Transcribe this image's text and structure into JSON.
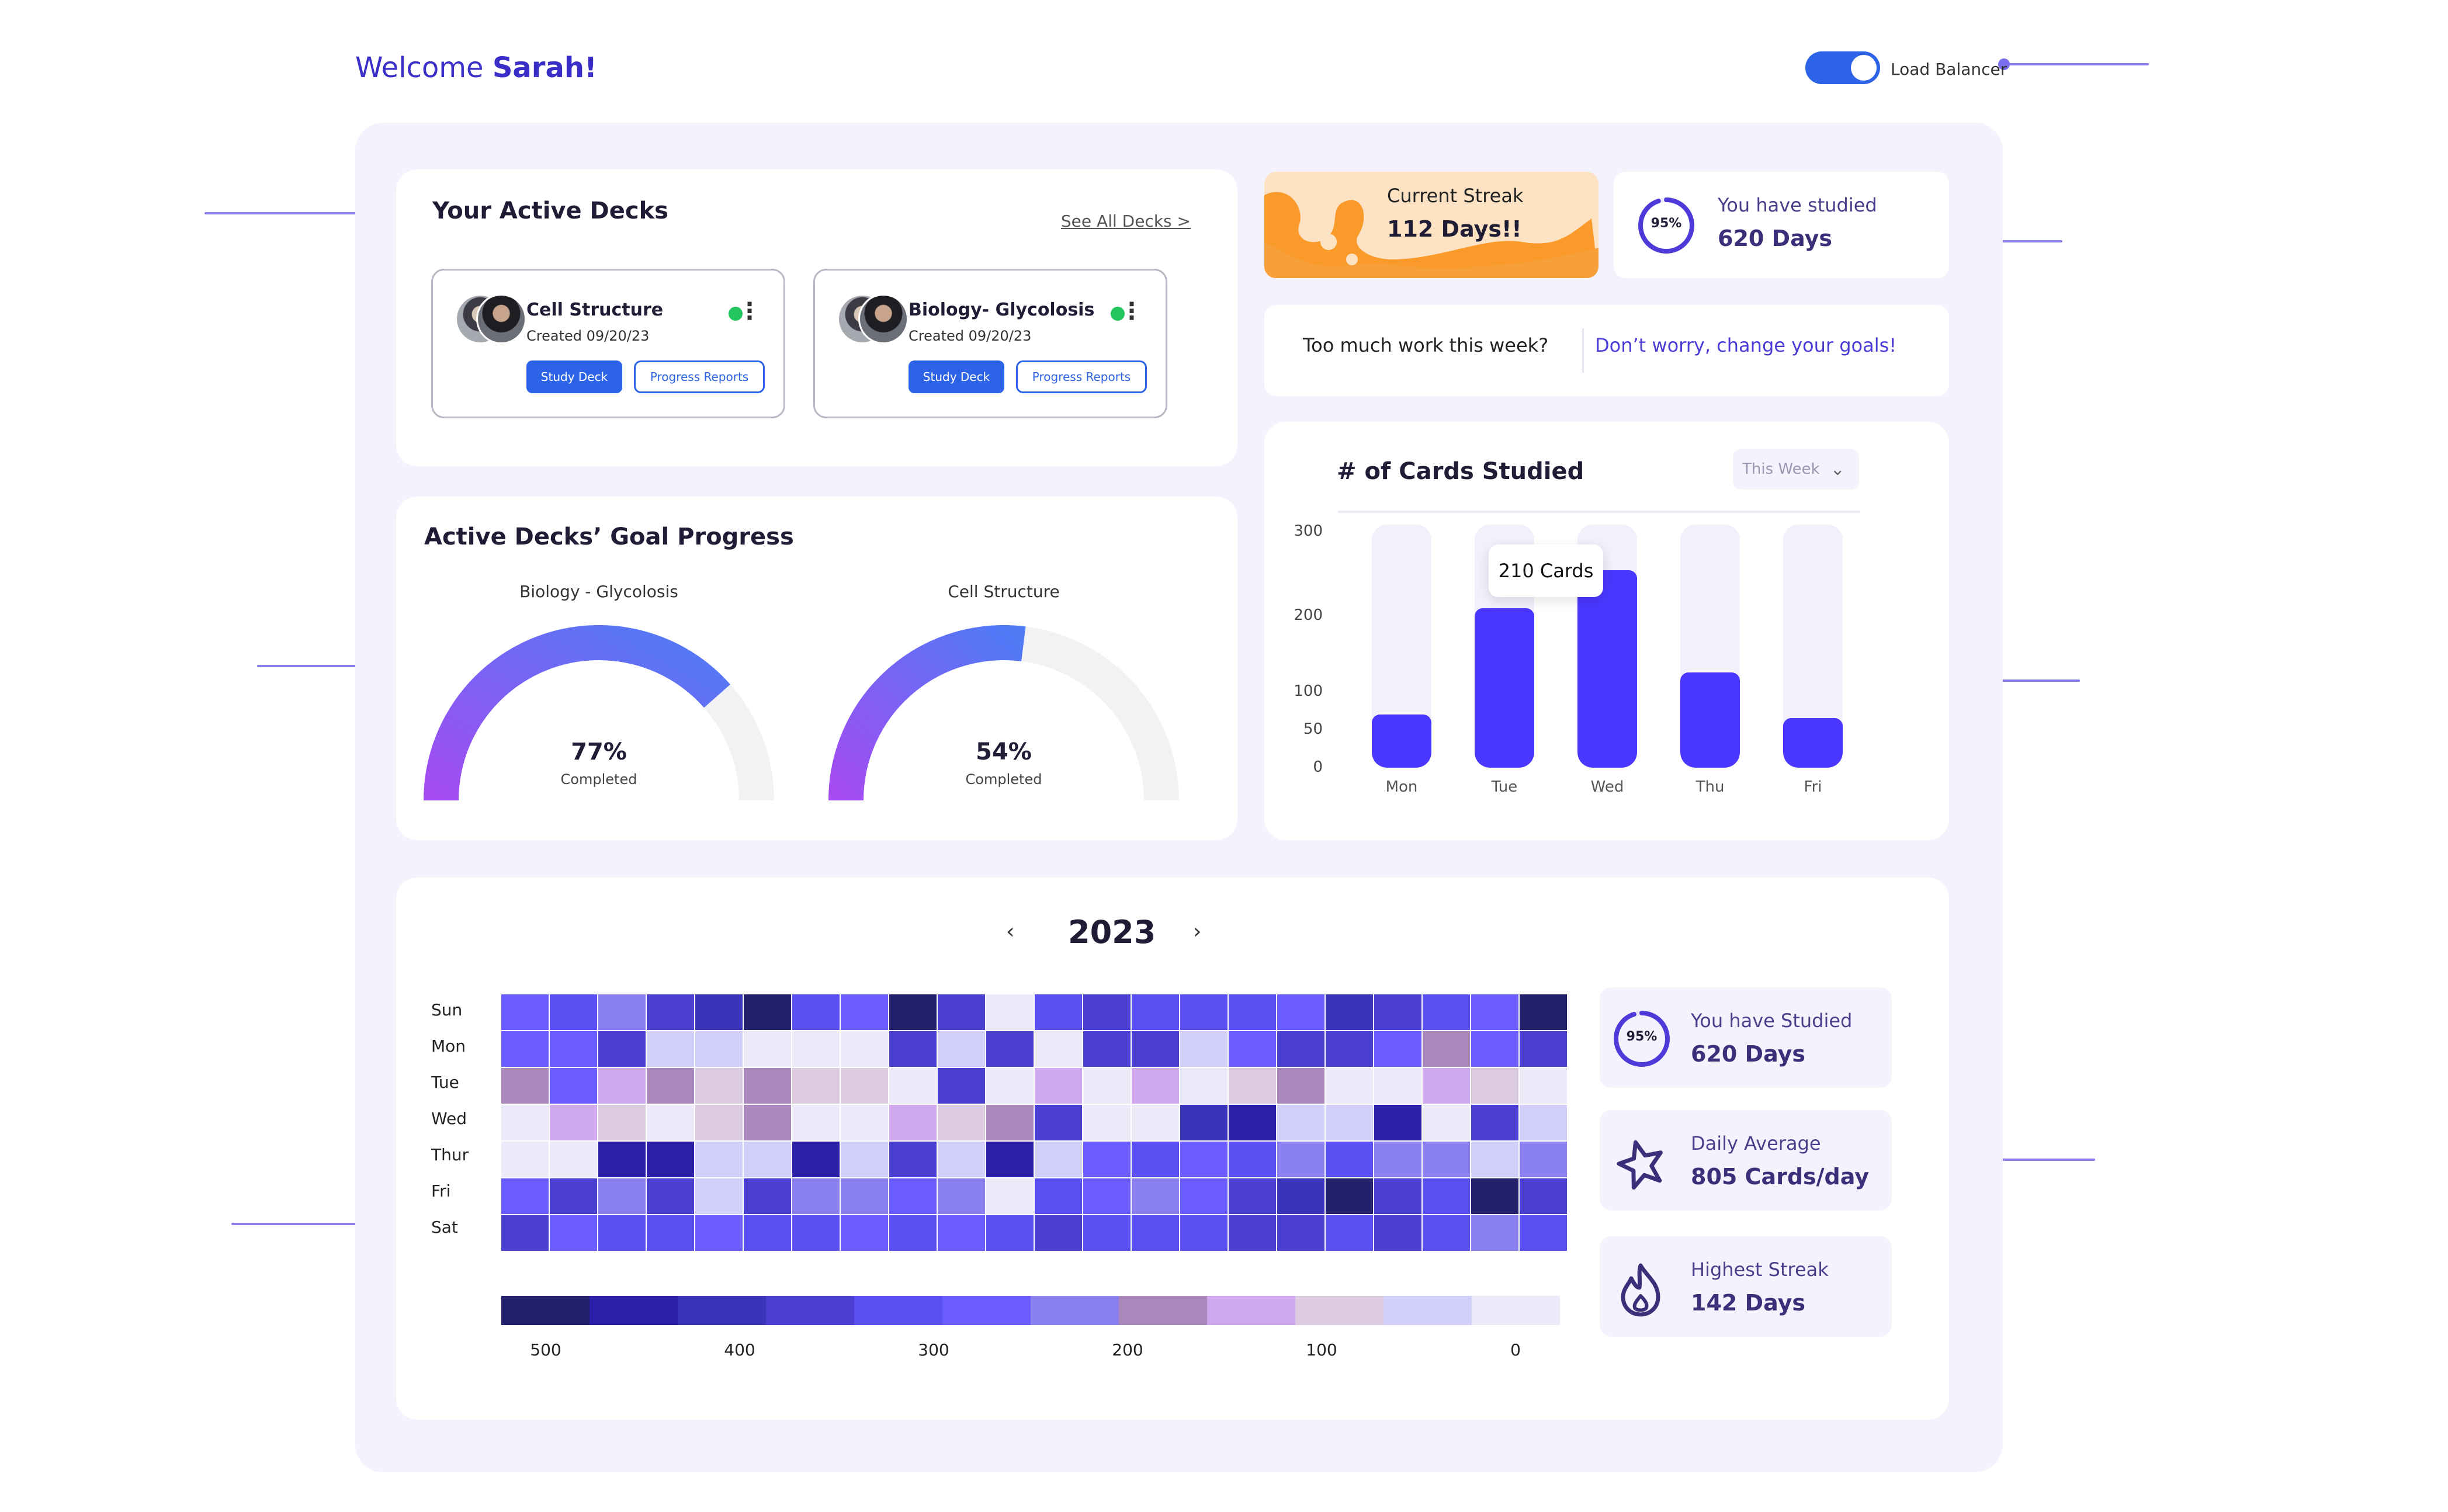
{
  "header": {
    "welcome_prefix": "Welcome",
    "user_name": "Sarah!",
    "toggle_label": "Load Balancer",
    "toggle_on": true
  },
  "decks": {
    "title": "Your Active Decks",
    "see_all": "See All Decks >",
    "items": [
      {
        "name": "Cell Structure",
        "created": "Created 09/20/23",
        "study": "Study Deck",
        "reports": "Progress Reports",
        "status_color": "#22c55e"
      },
      {
        "name": "Biology- Glycolosis",
        "created": "Created 09/20/23",
        "study": "Study Deck",
        "reports": "Progress Reports",
        "status_color": "#22c55e"
      }
    ]
  },
  "goal_progress": {
    "title": "Active Decks’ Goal Progress",
    "gauges": [
      {
        "label": "Biology - Glycolosis",
        "percent": 77,
        "percent_text": "77%",
        "sub": "Completed"
      },
      {
        "label": "Cell Structure",
        "percent": 54,
        "percent_text": "54%",
        "sub": "Completed"
      }
    ]
  },
  "streak": {
    "title": "Current Streak",
    "value": "112 Days!!"
  },
  "studied": {
    "ring_text": "95%",
    "ring_percent": 95,
    "label": "You have studied",
    "value": "620 Days"
  },
  "goals_banner": {
    "question": "Too much work this week?",
    "link": "Don’t worry, change your goals!"
  },
  "cards_studied": {
    "title": "# of Cards Studied",
    "dropdown": "This Week",
    "tooltip": "210 Cards"
  },
  "chart_data": {
    "type": "bar",
    "title": "# of Cards Studied",
    "categories": [
      "Mon",
      "Tue",
      "Wed",
      "Thu",
      "Fri"
    ],
    "values": [
      70,
      210,
      260,
      125,
      65
    ],
    "yticks": [
      "300",
      "200",
      "100",
      "50",
      "0"
    ],
    "ytick_values": [
      300,
      200,
      100,
      50,
      0
    ],
    "ylim": [
      0,
      320
    ]
  },
  "heatmap": {
    "year": "2023",
    "prev": "‹",
    "next": "›",
    "days": [
      "Sun",
      "Mon",
      "Tue",
      "Wed",
      "Thur",
      "Fri",
      "Sat"
    ],
    "legend_labels": [
      "500",
      "400",
      "300",
      "200",
      "100",
      "0"
    ],
    "legend_colors": [
      "#22206a",
      "#2a1fa6",
      "#3a35b8",
      "#4a3fd0",
      "#5a4ff0",
      "#6a5cff",
      "#8a80f0",
      "#aa88bb",
      "#cfa8ee",
      "#dccbe0",
      "#d2d0fa",
      "#eceaf8"
    ],
    "grid": [
      [
        5,
        4,
        6,
        3,
        2,
        0,
        4,
        5,
        0,
        3,
        11,
        4,
        3,
        4,
        4,
        4,
        5,
        2,
        3,
        4,
        5,
        0
      ],
      [
        5,
        5,
        3,
        10,
        10,
        11,
        11,
        11,
        3,
        10,
        3,
        11,
        3,
        3,
        10,
        5,
        3,
        3,
        5,
        7,
        5,
        3
      ],
      [
        7,
        5,
        8,
        7,
        9,
        7,
        9,
        9,
        11,
        3,
        11,
        8,
        11,
        8,
        11,
        9,
        7,
        11,
        11,
        8,
        9,
        11
      ],
      [
        11,
        8,
        9,
        11,
        9,
        7,
        11,
        11,
        8,
        9,
        7,
        3,
        11,
        11,
        2,
        1,
        10,
        10,
        1,
        11,
        3,
        10
      ],
      [
        11,
        11,
        1,
        1,
        10,
        10,
        1,
        10,
        3,
        10,
        1,
        10,
        5,
        4,
        5,
        4,
        6,
        4,
        6,
        6,
        10,
        6
      ],
      [
        5,
        3,
        6,
        3,
        10,
        3,
        6,
        6,
        5,
        6,
        11,
        4,
        5,
        6,
        5,
        3,
        2,
        0,
        3,
        4,
        0,
        3
      ],
      [
        3,
        5,
        4,
        4,
        5,
        4,
        4,
        5,
        4,
        5,
        4,
        3,
        4,
        4,
        4,
        3,
        3,
        4,
        3,
        4,
        6,
        4
      ]
    ]
  },
  "side_stats": [
    {
      "label": "You have Studied",
      "value": "620 Days",
      "ring_text": "95%",
      "icon": "ring-icon"
    },
    {
      "label": "Daily Average",
      "value": "805 Cards/day",
      "icon": "star-icon"
    },
    {
      "label": "Highest Streak",
      "value": "142 Days",
      "icon": "flame-icon"
    }
  ],
  "colors": {
    "accent": "#2d63e6",
    "bar": "#4a37ff",
    "panel": "#f4f2fd",
    "annotation": "#7b6ff0"
  }
}
